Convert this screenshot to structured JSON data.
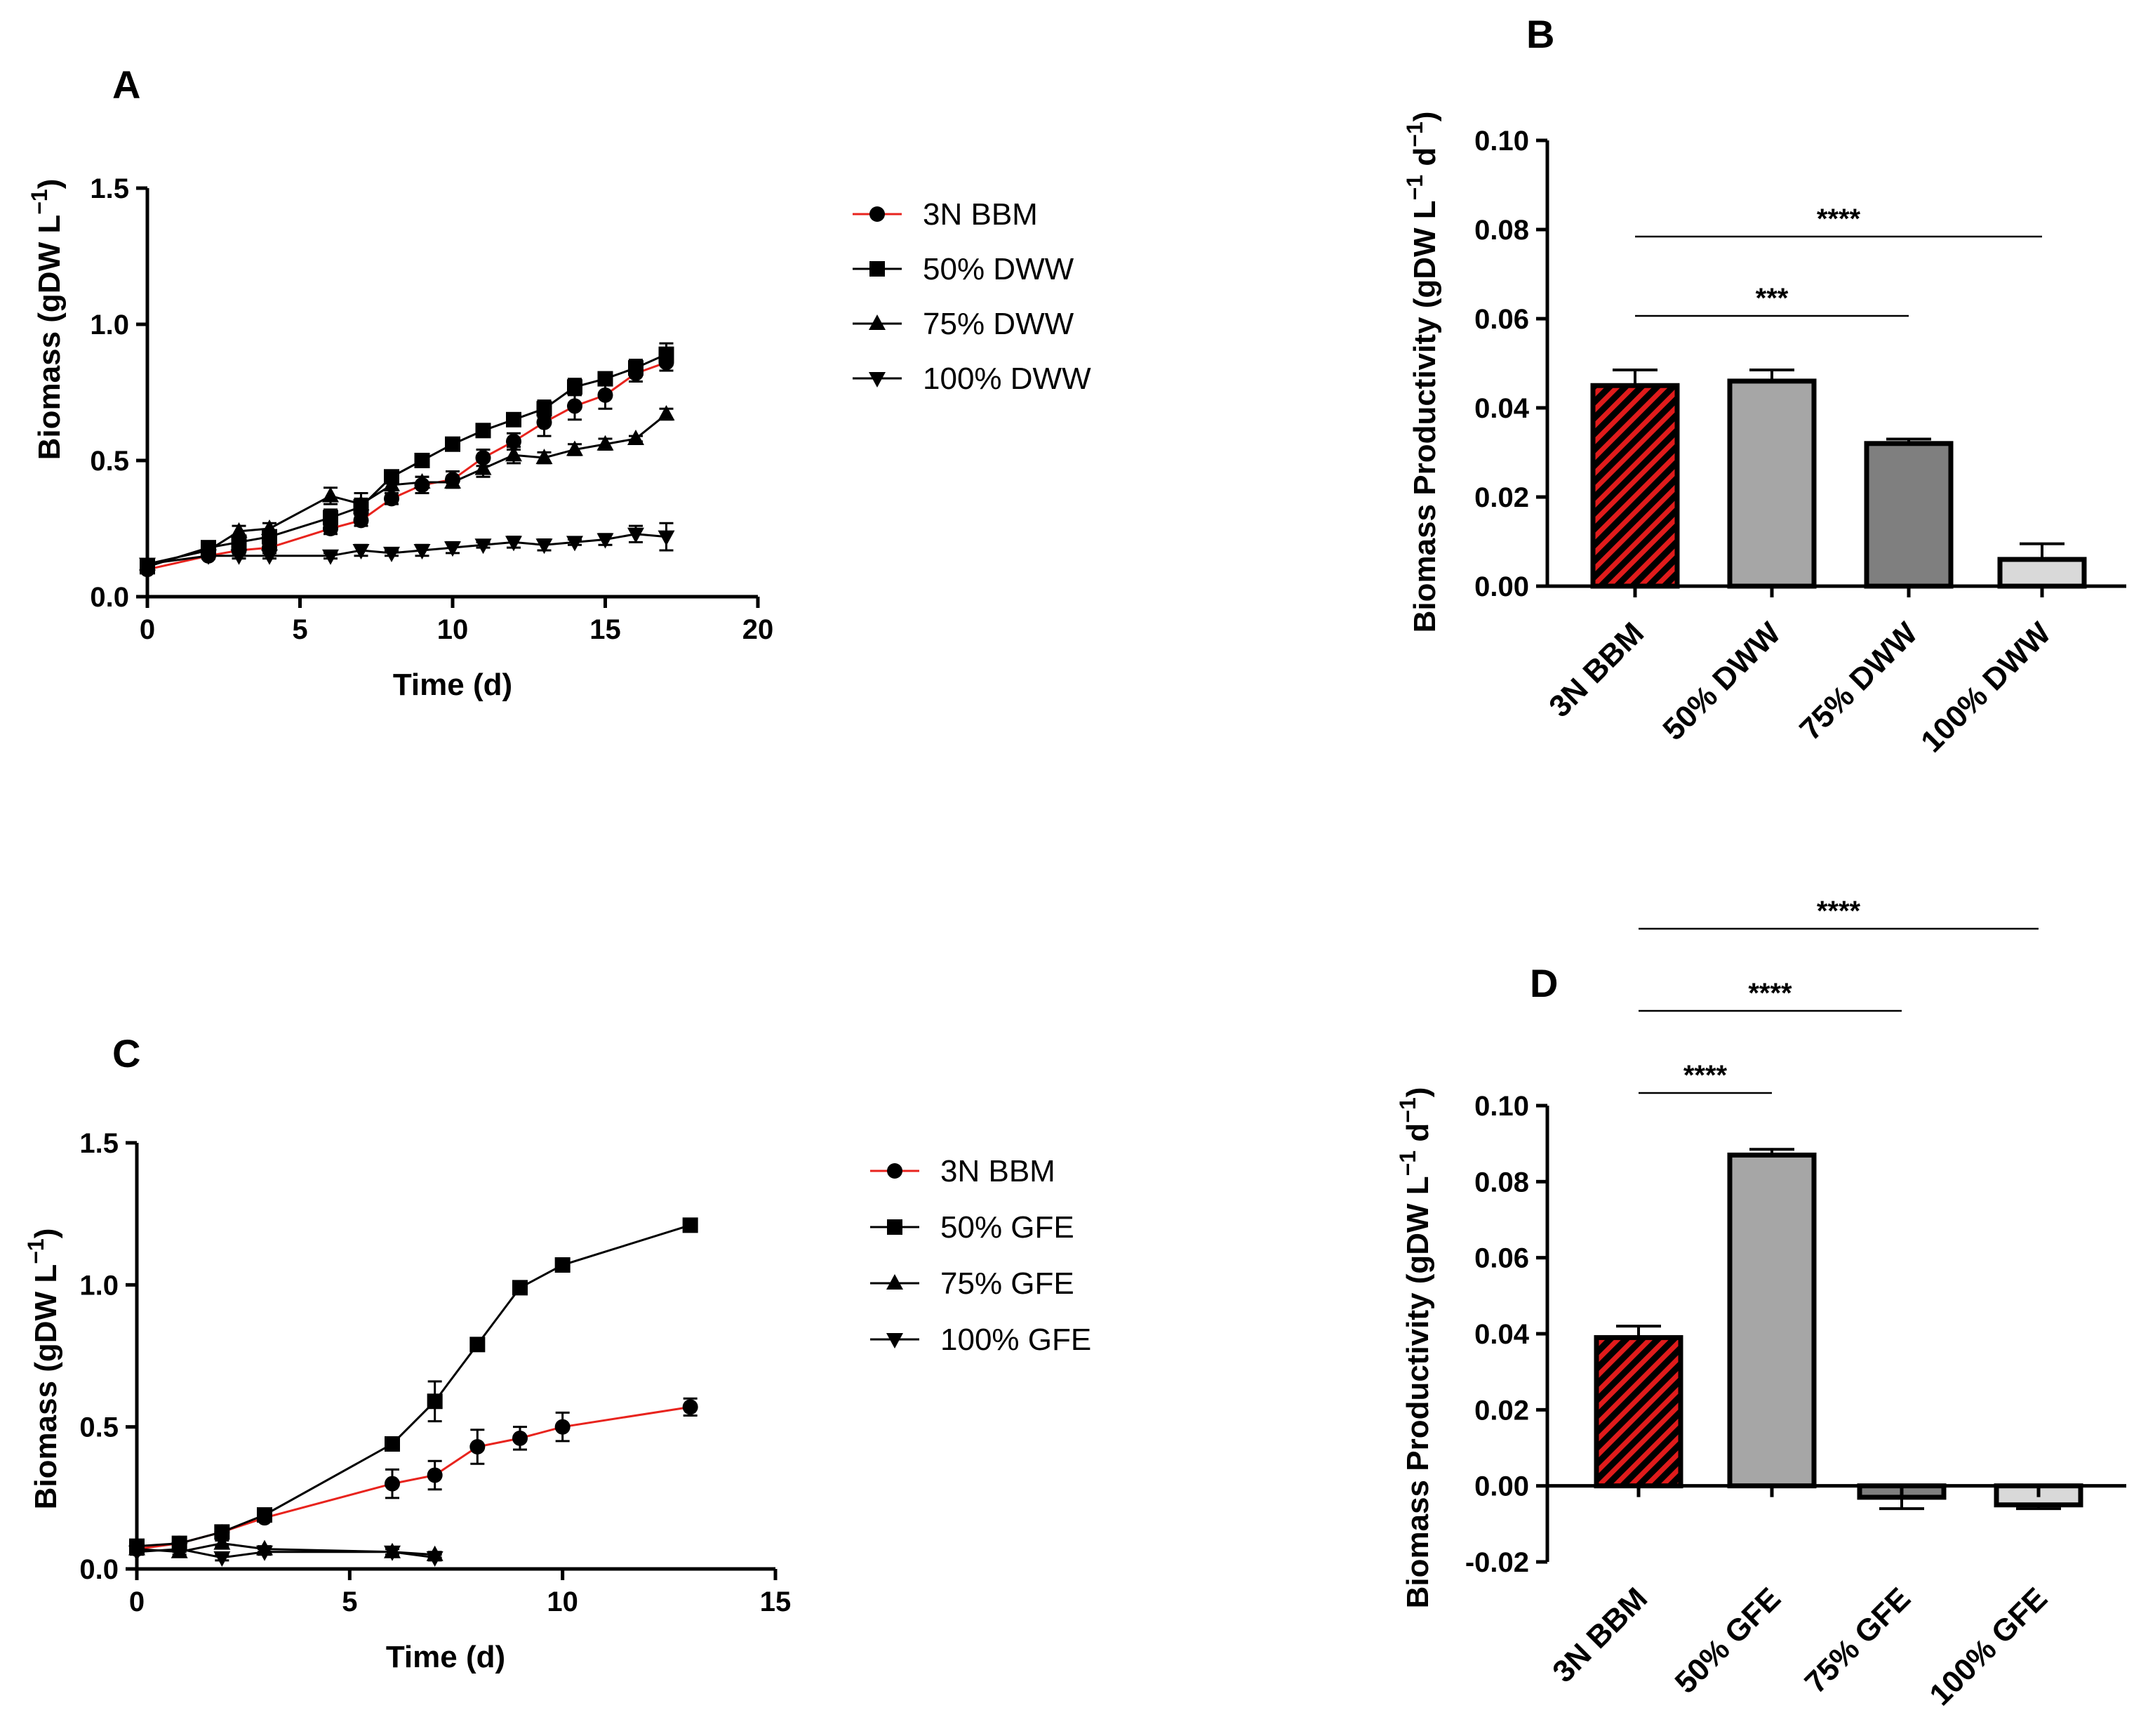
{
  "chart_data": [
    {
      "id": "A",
      "type": "line",
      "panel_label": "A",
      "xlabel": "Time (d)",
      "ylabel": "Biomass (gDW L",
      "ylabel_sup": "−1",
      "ylabel_end": ")",
      "xlim": [
        0,
        20
      ],
      "ylim": [
        0,
        1.5
      ],
      "xticks": [
        0,
        5,
        10,
        15,
        20
      ],
      "xtick_labels": [
        "0",
        "5",
        "10",
        "15",
        "20"
      ],
      "yticks": [
        0,
        0.5,
        1.0,
        1.5
      ],
      "ytick_labels": [
        "0.0",
        "0.5",
        "1.0",
        "1.5"
      ],
      "legend_position": "right",
      "series": [
        {
          "name": "3N BBM",
          "marker": "circle",
          "color": "#e8231d",
          "x": [
            0,
            2,
            3,
            4,
            6,
            7,
            8,
            9,
            10,
            11,
            12,
            13,
            14,
            15,
            16,
            17
          ],
          "y": [
            0.1,
            0.15,
            0.17,
            0.18,
            0.25,
            0.28,
            0.36,
            0.41,
            0.43,
            0.51,
            0.57,
            0.64,
            0.7,
            0.74,
            0.82,
            0.86
          ],
          "err": [
            0.01,
            0.01,
            0.02,
            0.02,
            0.02,
            0.02,
            0.02,
            0.03,
            0.03,
            0.03,
            0.03,
            0.05,
            0.05,
            0.05,
            0.03,
            0.03
          ]
        },
        {
          "name": "50% DWW",
          "marker": "square",
          "color": "#000000",
          "x": [
            0,
            2,
            3,
            4,
            6,
            7,
            8,
            9,
            10,
            11,
            12,
            13,
            14,
            15,
            16,
            17
          ],
          "y": [
            0.11,
            0.18,
            0.2,
            0.22,
            0.29,
            0.33,
            0.44,
            0.5,
            0.56,
            0.61,
            0.65,
            0.69,
            0.77,
            0.8,
            0.84,
            0.89
          ],
          "err": [
            0.01,
            0.02,
            0.02,
            0.02,
            0.03,
            0.03,
            0.02,
            0.02,
            0.02,
            0.02,
            0.02,
            0.03,
            0.03,
            0.02,
            0.03,
            0.04
          ]
        },
        {
          "name": "75% DWW",
          "marker": "triangle-up",
          "color": "#000000",
          "x": [
            0,
            2,
            3,
            4,
            6,
            7,
            8,
            9,
            10,
            11,
            12,
            13,
            14,
            15,
            16,
            17
          ],
          "y": [
            0.12,
            0.17,
            0.24,
            0.25,
            0.37,
            0.34,
            0.41,
            0.42,
            0.42,
            0.47,
            0.52,
            0.51,
            0.54,
            0.56,
            0.58,
            0.67
          ],
          "err": [
            0.01,
            0.02,
            0.02,
            0.02,
            0.03,
            0.04,
            0.02,
            0.02,
            0.02,
            0.03,
            0.03,
            0.02,
            0.02,
            0.02,
            0.01,
            0.02
          ]
        },
        {
          "name": "100% DWW",
          "marker": "triangle-down",
          "color": "#000000",
          "x": [
            0,
            2,
            3,
            4,
            6,
            7,
            8,
            9,
            10,
            11,
            12,
            13,
            14,
            15,
            16,
            17
          ],
          "y": [
            0.12,
            0.15,
            0.15,
            0.15,
            0.15,
            0.17,
            0.16,
            0.17,
            0.18,
            0.19,
            0.2,
            0.19,
            0.2,
            0.21,
            0.23,
            0.22
          ],
          "err": [
            0.01,
            0.01,
            0.01,
            0.01,
            0.01,
            0.02,
            0.01,
            0.02,
            0.02,
            0.01,
            0.02,
            0.02,
            0.01,
            0.02,
            0.03,
            0.05
          ]
        }
      ]
    },
    {
      "id": "B",
      "type": "bar",
      "panel_label": "B",
      "ylabel": "Biomass Productivity (gDW L",
      "ylabel_sup1": "−1",
      "ylabel_mid": " d",
      "ylabel_sup2": "−1",
      "ylabel_end": ")",
      "ylim": [
        0,
        0.1
      ],
      "yticks": [
        0,
        0.02,
        0.04,
        0.06,
        0.08,
        0.1
      ],
      "ytick_labels": [
        "0.00",
        "0.02",
        "0.04",
        "0.06",
        "0.08",
        "0.10"
      ],
      "categories": [
        "3N BBM",
        "50% DWW",
        "75% DWW",
        "100% DWW"
      ],
      "values": [
        0.045,
        0.046,
        0.032,
        0.006
      ],
      "errors": [
        0.0035,
        0.0025,
        0.001,
        0.0035
      ],
      "fills": [
        "hatch-red",
        "#a6a6a6",
        "#7f7f7f",
        "#d9d9d9"
      ],
      "significance": [
        {
          "from": 0,
          "to": 3,
          "label": "****"
        },
        {
          "from": 0,
          "to": 2,
          "label": "***"
        }
      ]
    },
    {
      "id": "C",
      "type": "line",
      "panel_label": "C",
      "xlabel": "Time (d)",
      "ylabel": "Biomass (gDW L",
      "ylabel_sup": "−1",
      "ylabel_end": ")",
      "xlim": [
        0,
        15
      ],
      "ylim": [
        0,
        1.5
      ],
      "xticks": [
        0,
        5,
        10,
        15
      ],
      "xtick_labels": [
        "0",
        "5",
        "10",
        "15"
      ],
      "yticks": [
        0,
        0.5,
        1.0,
        1.5
      ],
      "ytick_labels": [
        "0.0",
        "0.5",
        "1.0",
        "1.5"
      ],
      "legend_position": "right",
      "series": [
        {
          "name": "3N BBM",
          "marker": "circle",
          "color": "#e8231d",
          "x": [
            0,
            1,
            2,
            3,
            6,
            7,
            8,
            9,
            10,
            13
          ],
          "y": [
            0.07,
            0.09,
            0.13,
            0.18,
            0.3,
            0.33,
            0.43,
            0.46,
            0.5,
            0.57
          ],
          "err": [
            0.01,
            0.01,
            0.01,
            0.01,
            0.05,
            0.05,
            0.06,
            0.04,
            0.05,
            0.03
          ]
        },
        {
          "name": "50% GFE",
          "marker": "square",
          "color": "#000000",
          "x": [
            0,
            1,
            2,
            3,
            6,
            7,
            8,
            9,
            10,
            13
          ],
          "y": [
            0.08,
            0.09,
            0.13,
            0.19,
            0.44,
            0.59,
            0.79,
            0.99,
            1.07,
            1.21
          ],
          "err": [
            0.01,
            0.01,
            0.01,
            0.01,
            0.02,
            0.07,
            0.01,
            0.01,
            0.02,
            0.02
          ]
        },
        {
          "name": "75% GFE",
          "marker": "triangle-up",
          "color": "#000000",
          "x": [
            0,
            1,
            2,
            3,
            6,
            7
          ],
          "y": [
            0.07,
            0.06,
            0.09,
            0.07,
            0.06,
            0.05
          ],
          "err": [
            0.01,
            0.01,
            0.01,
            0.01,
            0.01,
            0.01
          ]
        },
        {
          "name": "100% GFE",
          "marker": "triangle-down",
          "color": "#000000",
          "x": [
            0,
            1,
            2,
            3,
            6,
            7
          ],
          "y": [
            0.06,
            0.07,
            0.04,
            0.06,
            0.06,
            0.04
          ],
          "err": [
            0.01,
            0.01,
            0.01,
            0.01,
            0.01,
            0.01
          ]
        }
      ]
    },
    {
      "id": "D",
      "type": "bar",
      "panel_label": "D",
      "ylabel": "Biomass Productivity (gDW L",
      "ylabel_sup1": "−1",
      "ylabel_mid": " d",
      "ylabel_sup2": "−1",
      "ylabel_end": ")",
      "ylim": [
        -0.02,
        0.1
      ],
      "yticks": [
        -0.02,
        0,
        0.02,
        0.04,
        0.06,
        0.08,
        0.1
      ],
      "ytick_labels": [
        "-0.02",
        "0.00",
        "0.02",
        "0.04",
        "0.06",
        "0.08",
        "0.10"
      ],
      "categories": [
        "3N BBM",
        "50% GFE",
        "75% GFE",
        "100% GFE"
      ],
      "values": [
        0.039,
        0.087,
        -0.003,
        -0.005
      ],
      "errors": [
        0.003,
        0.0015,
        0.003,
        0.001
      ],
      "fills": [
        "hatch-red",
        "#a6a6a6",
        "#7f7f7f",
        "#d9d9d9"
      ],
      "significance": [
        {
          "from": 0,
          "to": 3,
          "label": "****"
        },
        {
          "from": 0,
          "to": 2,
          "label": "****"
        },
        {
          "from": 0,
          "to": 1,
          "label": "****"
        }
      ]
    }
  ]
}
